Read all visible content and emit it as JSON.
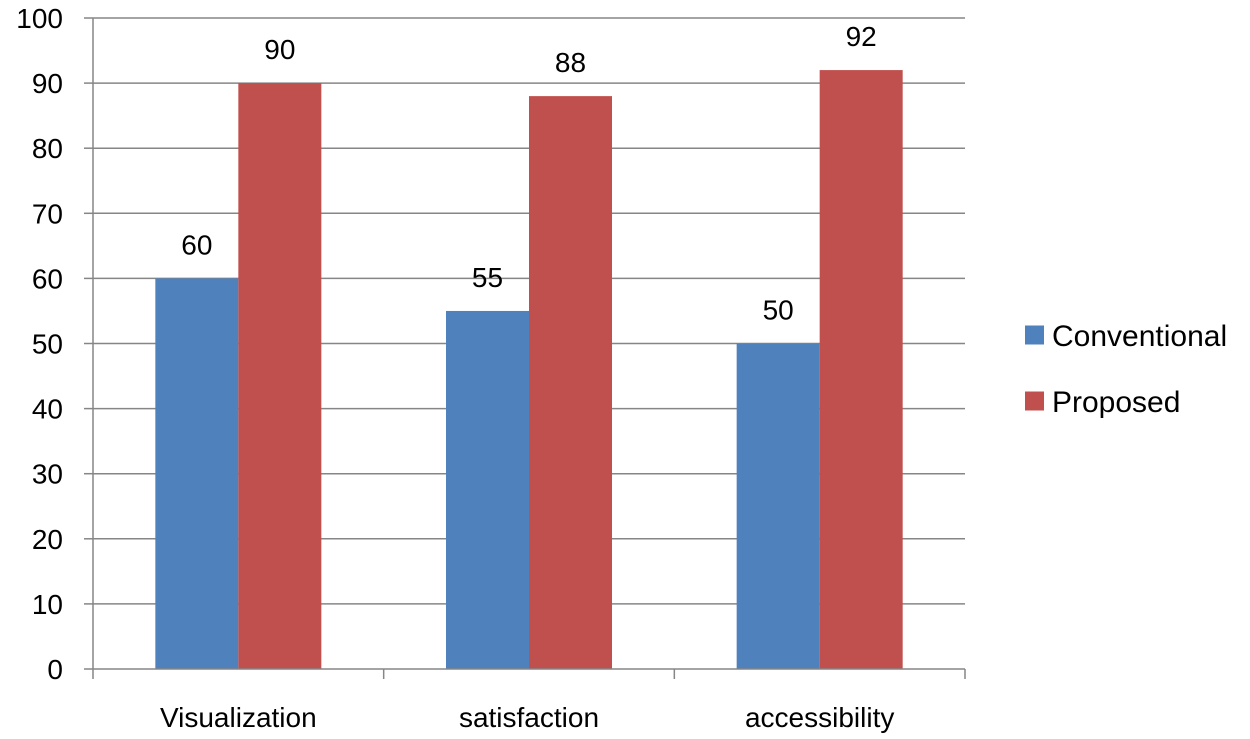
{
  "chart_data": {
    "type": "bar",
    "title": "",
    "xlabel": "",
    "ylabel": "",
    "categories": [
      "Visualization",
      "satisfaction",
      "accessibility"
    ],
    "series": [
      {
        "name": "Conventional",
        "values": [
          60,
          55,
          50
        ],
        "color": "#4F81BD"
      },
      {
        "name": "Proposed",
        "values": [
          90,
          88,
          92
        ],
        "color": "#C0504D"
      }
    ],
    "ylim": [
      0,
      100
    ],
    "yticks": [
      0,
      10,
      20,
      30,
      40,
      50,
      60,
      70,
      80,
      90,
      100
    ],
    "grid": true,
    "legend_position": "right",
    "data_labels": true
  }
}
